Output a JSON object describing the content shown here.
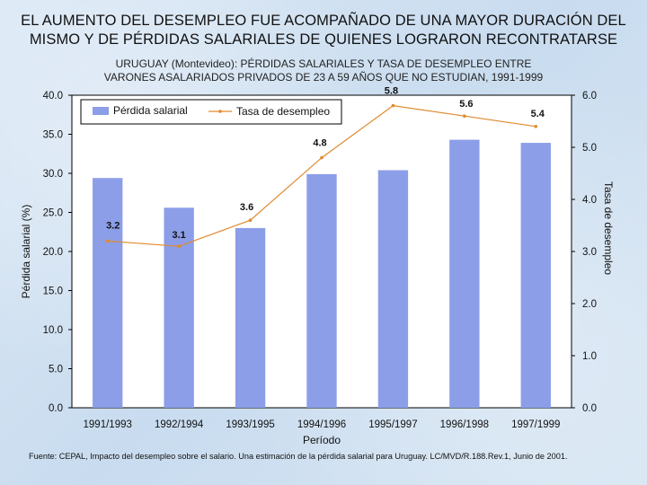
{
  "title_line1": "EL AUMENTO DEL DESEMPLEO FUE ACOMPAÑADO DE UNA MAYOR DURACIÓN DEL",
  "title_line2": "MISMO Y DE PÉRDIDAS SALARIALES DE QUIENES LOGRARON RECONTRATARSE",
  "subtitle_line1": "URUGUAY (Montevideo): PÉRDIDAS SALARIALES Y TASA DE DESEMPLEO ENTRE",
  "subtitle_line2": "VARONES ASALARIADOS PRIVADOS DE  23 A 59 AÑOS QUE NO ESTUDIAN, 1991-1999",
  "source": "Fuente: CEPAL, Impacto del desempleo sobre el salario. Una estimación de la pérdida salarial para Uruguay. LC/MVD/R.188.Rev.1, Junio de 2001.",
  "colors": {
    "bar": "#8c9ee8",
    "line": "#e08a2e",
    "plot_bg": "#ffffff"
  },
  "chart_data": {
    "type": "bar",
    "categories": [
      "1991/1993",
      "1992/1994",
      "1993/1995",
      "1994/1996",
      "1995/1997",
      "1996/1998",
      "1997/1999"
    ],
    "series": [
      {
        "name": "Pérdida salarial",
        "kind": "bar",
        "axis": "left",
        "values": [
          29.4,
          25.6,
          23.0,
          29.9,
          30.4,
          34.3,
          33.9
        ]
      },
      {
        "name": "Tasa de desempleo",
        "kind": "line",
        "axis": "right",
        "values": [
          3.2,
          3.1,
          3.6,
          4.8,
          5.8,
          5.6,
          5.4
        ],
        "labels": [
          "3.2",
          "3.1",
          "3.6",
          "4.8",
          "5.8",
          "5.6",
          "5.4"
        ]
      }
    ],
    "xlabel": "Período",
    "ylabel": "Pérdida salarial (%)",
    "y2label": "Tasa de desempleo",
    "ylim": [
      0,
      40
    ],
    "y2lim": [
      0,
      6
    ],
    "yticks": [
      "0.0",
      "5.0",
      "10.0",
      "15.0",
      "20.0",
      "25.0",
      "30.0",
      "35.0",
      "40.0"
    ],
    "y2ticks": [
      "0.0",
      "1.0",
      "2.0",
      "3.0",
      "4.0",
      "5.0",
      "6.0"
    ],
    "legend": [
      "Pérdida salarial",
      "Tasa de desempleo"
    ],
    "legend_position": "top"
  }
}
